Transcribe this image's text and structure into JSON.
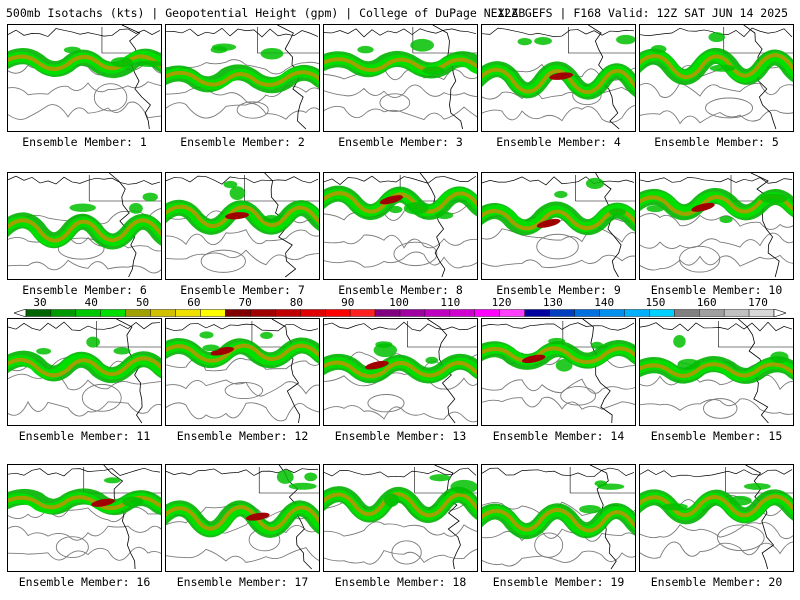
{
  "header": {
    "left": "500mb Isotachs (kts) | Geopotential Height (gpm) | College of DuPage NEXLAB",
    "right": "12Z GEFS | F168 Valid: 12Z SAT JUN 14 2025"
  },
  "legend": {
    "labels": [
      "30",
      "40",
      "50",
      "60",
      "70",
      "80",
      "90",
      "100",
      "110",
      "120",
      "130",
      "140",
      "150",
      "160",
      "170"
    ],
    "colors": [
      "#006400",
      "#009a00",
      "#00c800",
      "#00e000",
      "#a0a000",
      "#d0c000",
      "#f0e000",
      "#ffff00",
      "#800000",
      "#a00000",
      "#c00000",
      "#e00000",
      "#ff0000",
      "#ff2020",
      "#800080",
      "#a000a0",
      "#c000c0",
      "#d000d0",
      "#ff00ff",
      "#ff40ff",
      "#0000a0",
      "#0040c0",
      "#0070e0",
      "#0090f0",
      "#00b0ff",
      "#00d0ff",
      "#808080",
      "#a0a0a0",
      "#c0c0c0",
      "#d8d8d8"
    ]
  },
  "members": [
    {
      "label": "Ensemble Member: 1",
      "jet_intensity": 2
    },
    {
      "label": "Ensemble Member: 2",
      "jet_intensity": 2
    },
    {
      "label": "Ensemble Member: 3",
      "jet_intensity": 2
    },
    {
      "label": "Ensemble Member: 4",
      "jet_intensity": 3
    },
    {
      "label": "Ensemble Member: 5",
      "jet_intensity": 2
    },
    {
      "label": "Ensemble Member: 6",
      "jet_intensity": 2
    },
    {
      "label": "Ensemble Member: 7",
      "jet_intensity": 3
    },
    {
      "label": "Ensemble Member: 8",
      "jet_intensity": 3
    },
    {
      "label": "Ensemble Member: 9",
      "jet_intensity": 3
    },
    {
      "label": "Ensemble Member: 10",
      "jet_intensity": 3
    },
    {
      "label": "Ensemble Member: 11",
      "jet_intensity": 2
    },
    {
      "label": "Ensemble Member: 12",
      "jet_intensity": 3
    },
    {
      "label": "Ensemble Member: 13",
      "jet_intensity": 3
    },
    {
      "label": "Ensemble Member: 14",
      "jet_intensity": 3
    },
    {
      "label": "Ensemble Member: 15",
      "jet_intensity": 2
    },
    {
      "label": "Ensemble Member: 16",
      "jet_intensity": 3
    },
    {
      "label": "Ensemble Member: 17",
      "jet_intensity": 3
    },
    {
      "label": "Ensemble Member: 18",
      "jet_intensity": 2
    },
    {
      "label": "Ensemble Member: 19",
      "jet_intensity": 2
    },
    {
      "label": "Ensemble Member: 20",
      "jet_intensity": 2
    }
  ]
}
